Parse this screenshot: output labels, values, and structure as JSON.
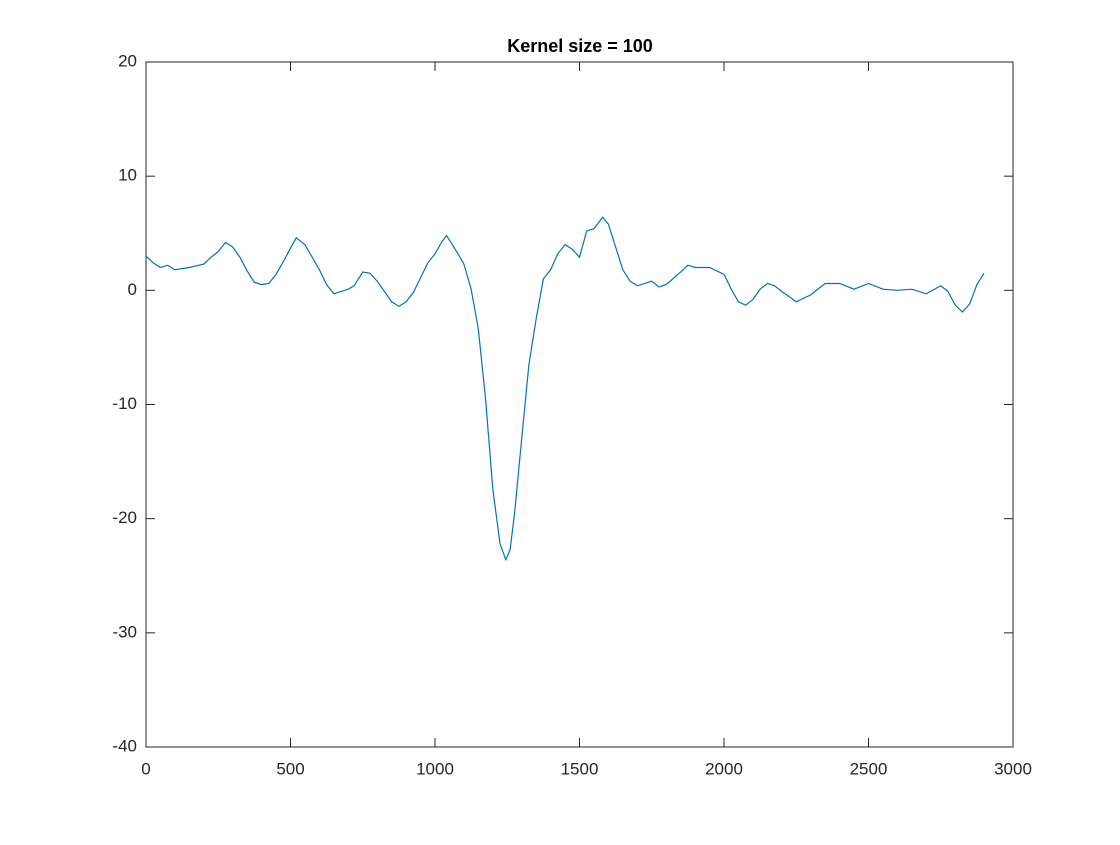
{
  "chart_data": {
    "type": "line",
    "title": "Kernel size = 100",
    "x": [
      0,
      25,
      50,
      75,
      100,
      150,
      200,
      225,
      250,
      275,
      300,
      325,
      350,
      375,
      400,
      425,
      450,
      475,
      500,
      520,
      550,
      575,
      600,
      625,
      650,
      675,
      700,
      720,
      750,
      775,
      800,
      825,
      850,
      875,
      900,
      925,
      950,
      975,
      1000,
      1025,
      1040,
      1075,
      1100,
      1125,
      1150,
      1175,
      1200,
      1225,
      1245,
      1260,
      1275,
      1300,
      1325,
      1350,
      1375,
      1400,
      1425,
      1450,
      1475,
      1500,
      1525,
      1550,
      1580,
      1600,
      1625,
      1650,
      1675,
      1700,
      1750,
      1775,
      1800,
      1850,
      1875,
      1900,
      1950,
      2000,
      2025,
      2050,
      2075,
      2100,
      2125,
      2150,
      2175,
      2200,
      2250,
      2300,
      2350,
      2400,
      2450,
      2500,
      2550,
      2600,
      2650,
      2700,
      2750,
      2775,
      2800,
      2825,
      2850,
      2875,
      2900
    ],
    "series": [
      {
        "color": "#0072bd",
        "values": [
          3.0,
          2.4,
          2.0,
          2.2,
          1.8,
          2.0,
          2.3,
          2.9,
          3.4,
          4.2,
          3.8,
          2.9,
          1.7,
          0.7,
          0.5,
          0.6,
          1.4,
          2.5,
          3.7,
          4.6,
          4.0,
          2.9,
          1.8,
          0.5,
          -0.3,
          -0.1,
          0.1,
          0.4,
          1.6,
          1.5,
          0.8,
          -0.1,
          -1.0,
          -1.4,
          -1.0,
          -0.2,
          1.1,
          2.4,
          3.2,
          4.3,
          4.8,
          3.4,
          2.3,
          0.1,
          -3.4,
          -9.5,
          -17.4,
          -22.2,
          -23.6,
          -22.7,
          -19.6,
          -13.0,
          -6.5,
          -2.5,
          1.0,
          1.8,
          3.2,
          4.0,
          3.6,
          2.9,
          5.2,
          5.4,
          6.4,
          5.8,
          3.8,
          1.8,
          0.8,
          0.4,
          0.8,
          0.3,
          0.5,
          1.6,
          2.2,
          2.0,
          2.0,
          1.4,
          0.1,
          -1.0,
          -1.3,
          -0.8,
          0.1,
          0.6,
          0.4,
          -0.1,
          -1.0,
          -0.4,
          0.6,
          0.6,
          0.1,
          0.6,
          0.1,
          0.0,
          0.1,
          -0.3,
          0.4,
          -0.1,
          -1.3,
          -1.9,
          -1.2,
          0.5,
          1.5
        ]
      }
    ],
    "xlim": [
      0,
      3000
    ],
    "xticks": [
      0,
      500,
      1000,
      1500,
      2000,
      2500,
      3000
    ],
    "ylim": [
      -40,
      20
    ],
    "yticks": [
      -40,
      -30,
      -20,
      -10,
      0,
      10,
      20
    ]
  }
}
